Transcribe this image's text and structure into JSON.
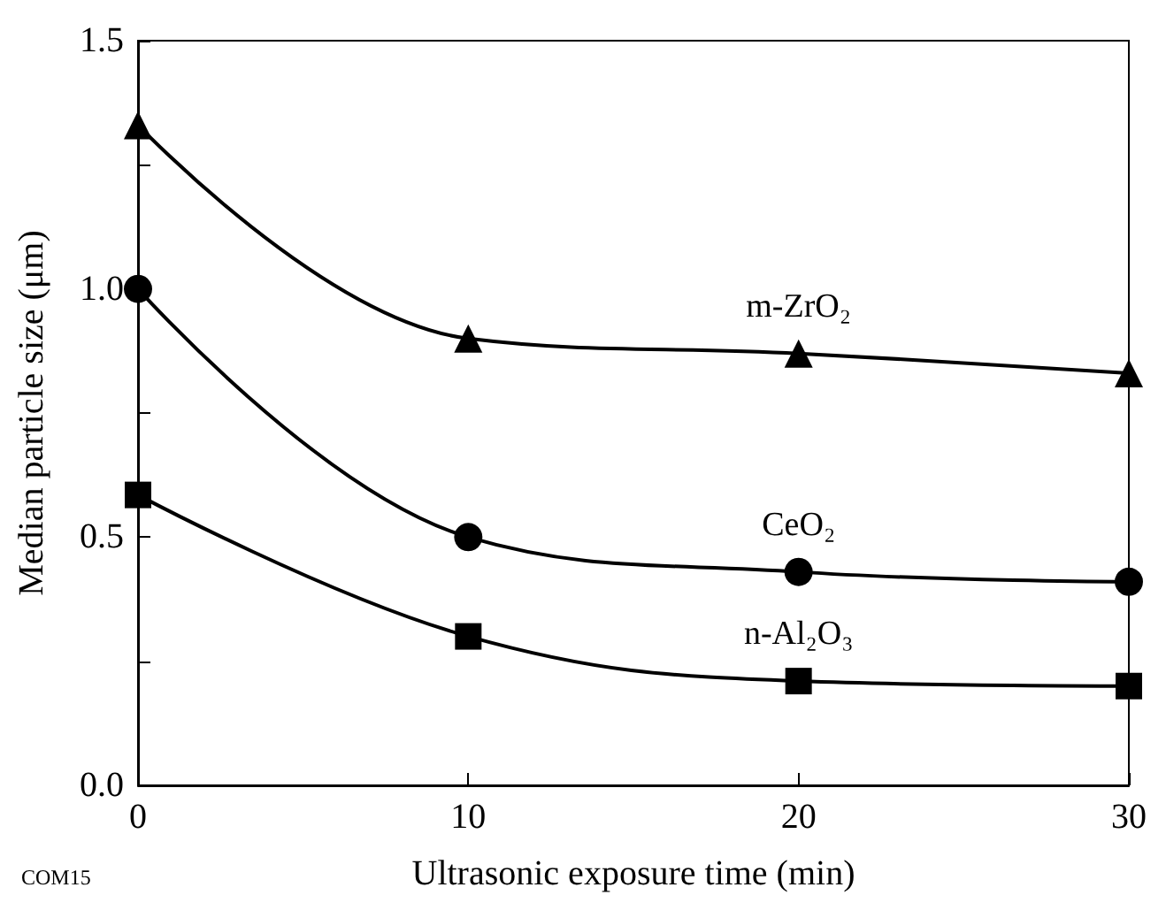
{
  "chart_data": {
    "type": "line",
    "xlabel": "Ultrasonic exposure time (min)",
    "ylabel": "Median particle size (μm)",
    "x": [
      0,
      10,
      20,
      30
    ],
    "series": [
      {
        "name": "m-ZrO₂",
        "color": "#000000",
        "marker": "triangle",
        "values": [
          1.33,
          0.9,
          0.87,
          0.83
        ]
      },
      {
        "name": "CeO₂",
        "color": "#000000",
        "marker": "circle",
        "values": [
          1.0,
          0.5,
          0.43,
          0.41
        ]
      },
      {
        "name": "n-Al₂O₃",
        "color": "#000000",
        "marker": "square",
        "values": [
          0.585,
          0.3,
          0.21,
          0.2
        ]
      }
    ],
    "xlim": [
      0,
      30
    ],
    "xticks": [
      0,
      10,
      20,
      30
    ],
    "ylim": [
      0,
      1.5
    ],
    "yticks": [
      {
        "value": 0,
        "label": "0.0"
      },
      {
        "value": 0.25,
        "label": null
      },
      {
        "value": 0.5,
        "label": "0.5"
      },
      {
        "value": 0.75,
        "label": null
      },
      {
        "value": 1,
        "label": "1.0"
      },
      {
        "value": 1.25,
        "label": null
      },
      {
        "value": 1.5,
        "label": "1.5"
      }
    ],
    "grid": false,
    "legend": false,
    "line_style": "solid",
    "annotations": [
      "COM15"
    ]
  }
}
